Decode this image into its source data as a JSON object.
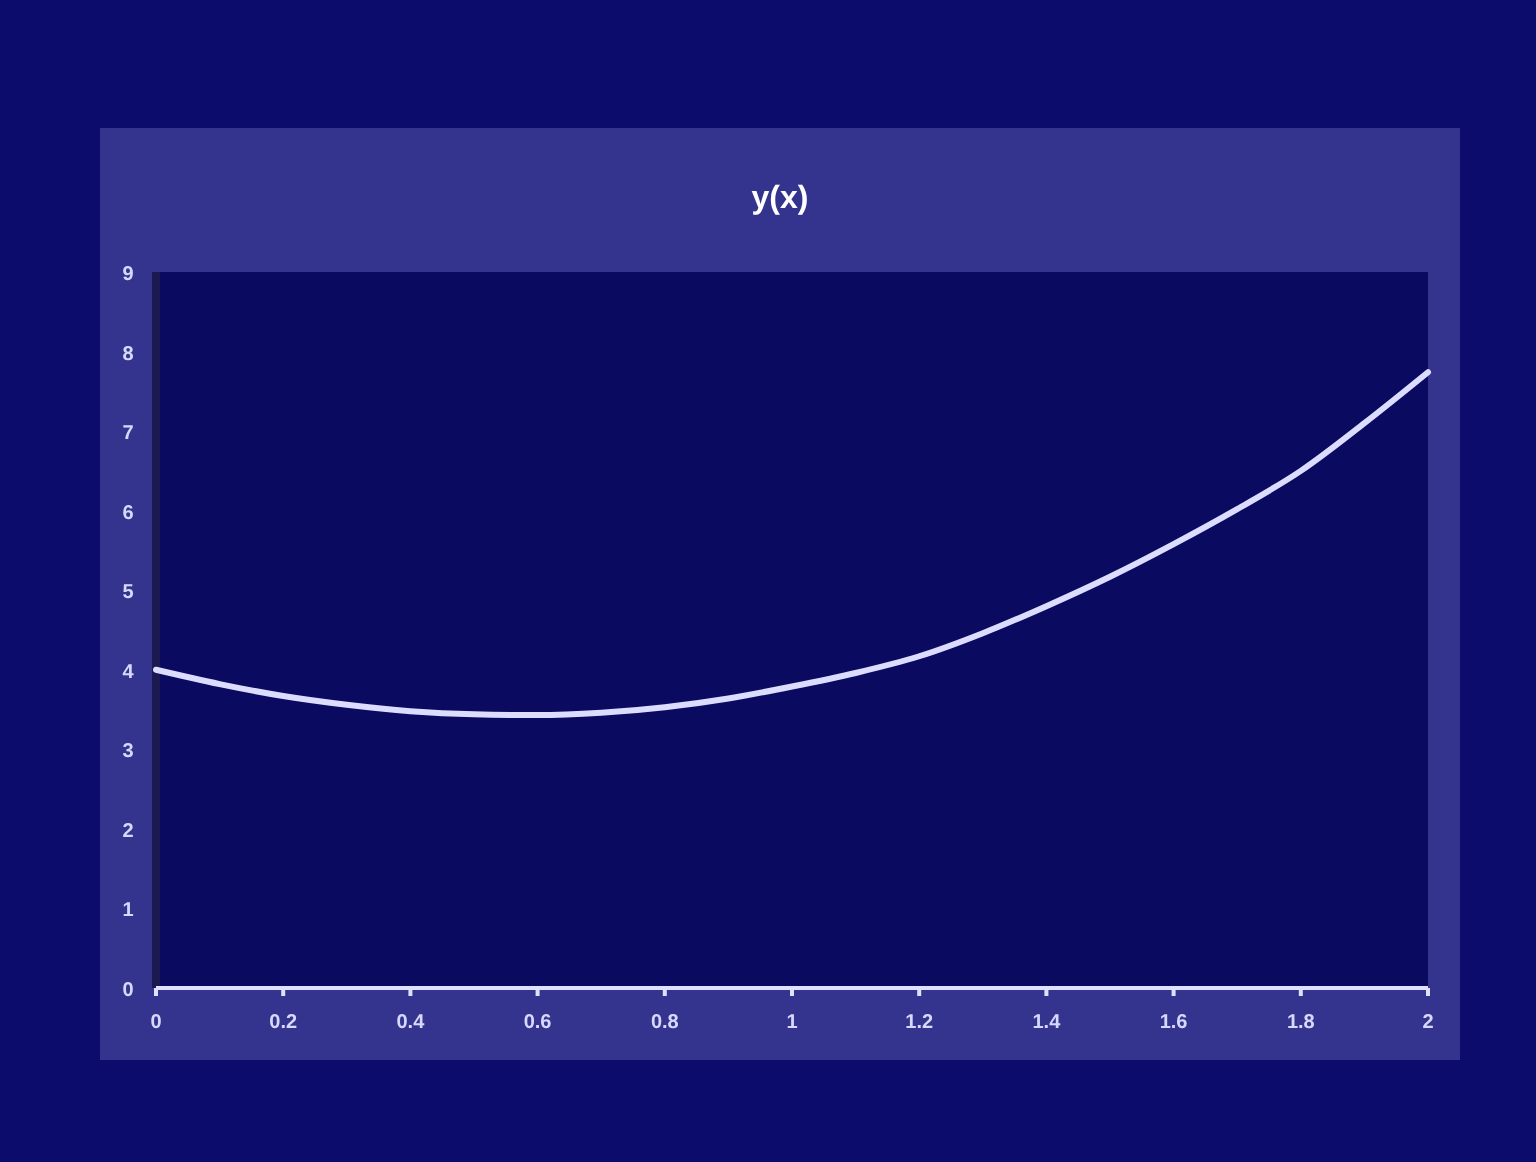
{
  "chart_data": {
    "type": "line",
    "title": "y(x)",
    "x": [
      0,
      0.1,
      0.2,
      0.3,
      0.4,
      0.5,
      0.6,
      0.7,
      0.8,
      0.9,
      1.0,
      1.1,
      1.2,
      1.3,
      1.4,
      1.5,
      1.6,
      1.7,
      1.8,
      1.9,
      2.0
    ],
    "series": [
      {
        "color": "#dcdcff",
        "values": [
          4.0,
          3.82,
          3.67,
          3.56,
          3.48,
          3.44,
          3.43,
          3.46,
          3.53,
          3.64,
          3.79,
          3.96,
          4.17,
          4.46,
          4.8,
          5.17,
          5.58,
          6.02,
          6.5,
          7.1,
          7.74
        ]
      }
    ],
    "xlim": [
      0,
      2
    ],
    "xticks": [
      0,
      0.2,
      0.4,
      0.6,
      0.8,
      1,
      1.2,
      1.4,
      1.6,
      1.8,
      2
    ],
    "ylim": [
      0,
      9
    ],
    "yticks": [
      0,
      1,
      2,
      3,
      4,
      5,
      6,
      7,
      8,
      9
    ],
    "grid": false,
    "marker": "none",
    "line_style": "solid"
  }
}
